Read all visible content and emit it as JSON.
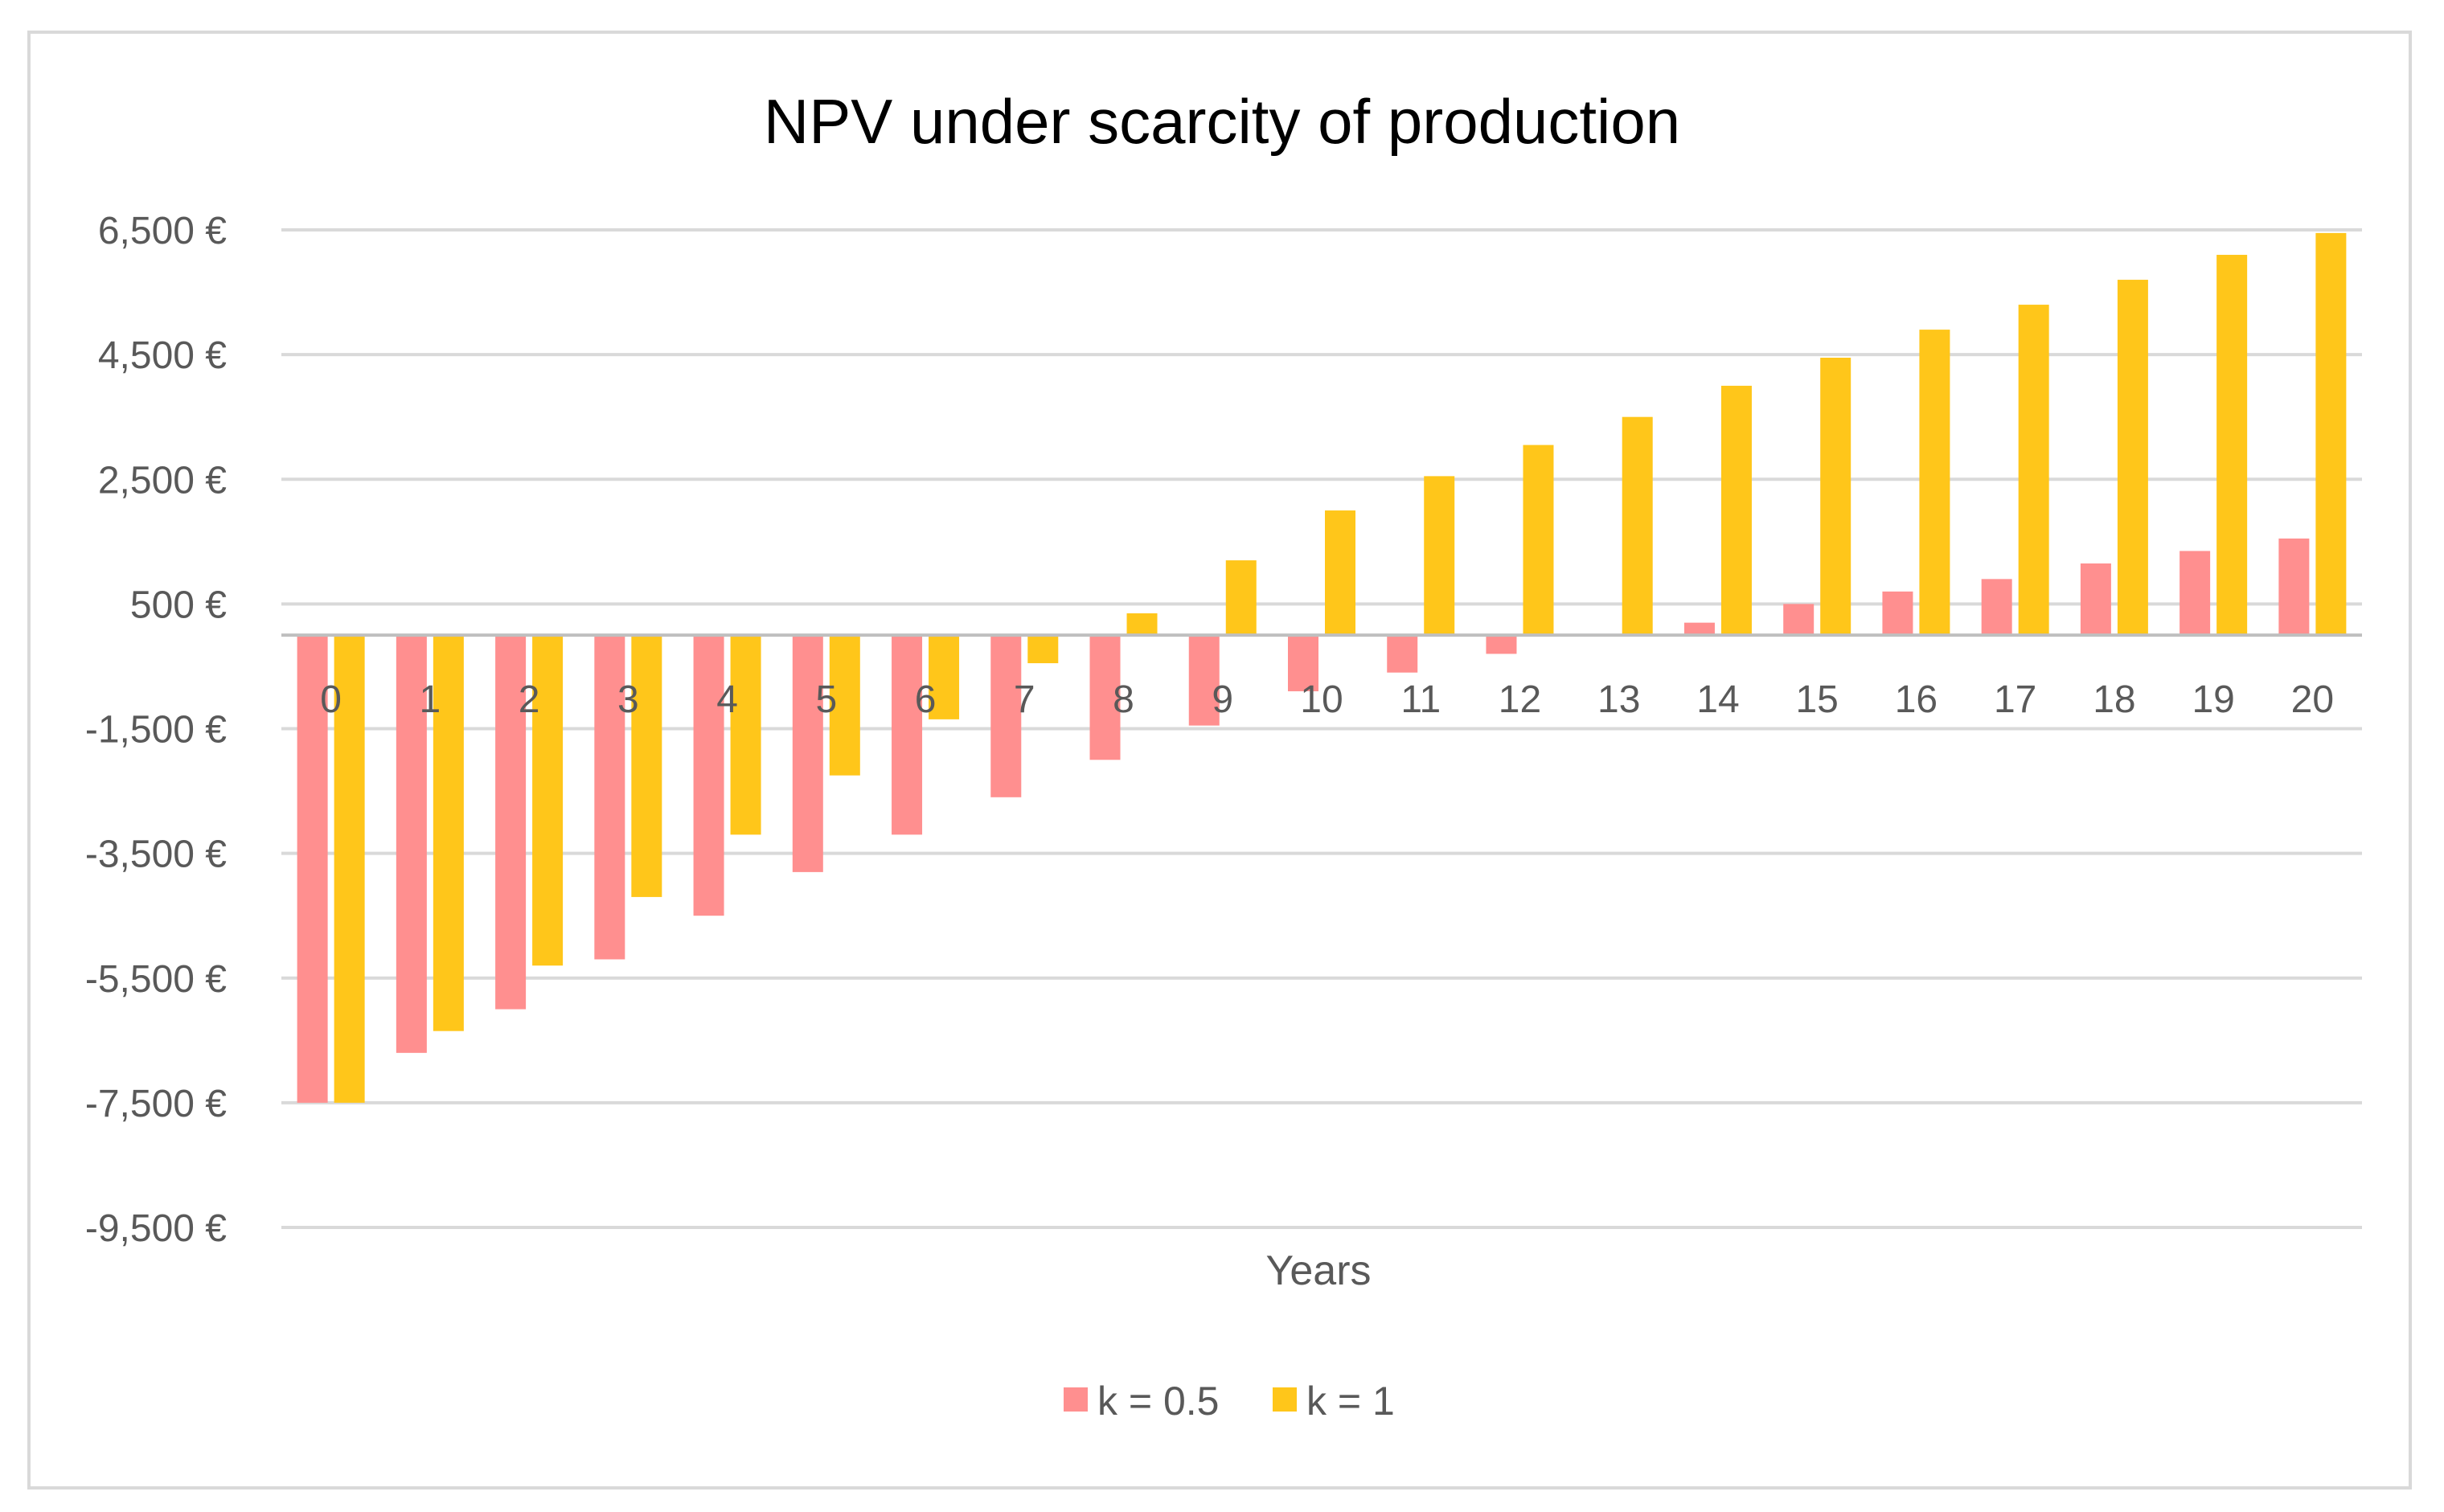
{
  "chart_data": {
    "type": "bar",
    "title": "NPV under scarcity of production",
    "xlabel": "Years",
    "ylabel": "",
    "ylim": [
      -9500,
      6500
    ],
    "yticks": [
      6500,
      4500,
      2500,
      500,
      -1500,
      -3500,
      -5500,
      -7500,
      -9500
    ],
    "ytick_labels": [
      "6,500 €",
      "4,500 €",
      "2,500 €",
      "500 €",
      "-1,500 €",
      "-3,500 €",
      "-5,500 €",
      "-7,500 €",
      "-9,500 €"
    ],
    "categories": [
      "0",
      "1",
      "2",
      "3",
      "4",
      "5",
      "6",
      "7",
      "8",
      "9",
      "10",
      "11",
      "12",
      "13",
      "14",
      "15",
      "16",
      "17",
      "18",
      "19",
      "20"
    ],
    "grid": true,
    "legend_position": "bottom",
    "series": [
      {
        "name": "k = 0.5",
        "color": "#ff8f8f",
        "values": [
          -7500,
          -6700,
          -6000,
          -5200,
          -4500,
          -3800,
          -3200,
          -2600,
          -2000,
          -1450,
          -900,
          -600,
          -300,
          0,
          200,
          500,
          700,
          900,
          1150,
          1350,
          1550
        ]
      },
      {
        "name": "k = 1",
        "color": "#ffc61a",
        "values": [
          -7500,
          -6350,
          -5300,
          -4200,
          -3200,
          -2250,
          -1350,
          -450,
          350,
          1200,
          2000,
          2550,
          3050,
          3500,
          4000,
          4450,
          4900,
          5300,
          5700,
          6100,
          6450
        ]
      }
    ]
  }
}
